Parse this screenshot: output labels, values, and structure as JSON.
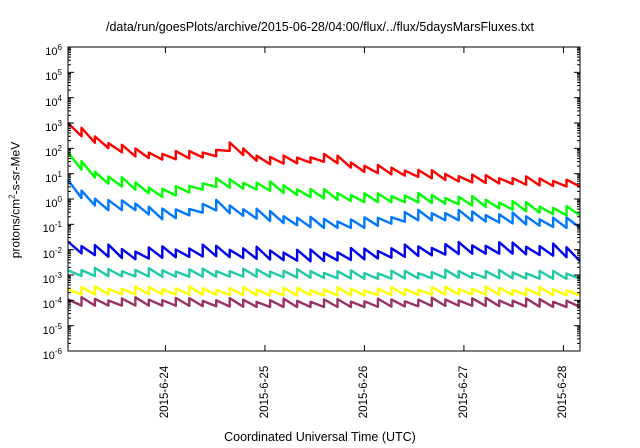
{
  "chart_data": {
    "type": "line",
    "title": "/data/run/goesPlots/archive/2015-06-28/04:00/flux/../flux/5daysMarsFluxes.txt",
    "xlabel": "Coordinated Universal Time (UTC)",
    "ylabel": "protons/cm2-s-sr-MeV",
    "ylabel_parts": {
      "pre": "protons/cm",
      "sup": "2",
      "post": "-s-sr-MeV"
    },
    "yscale": "log",
    "ylim": [
      1e-06,
      1000000.0
    ],
    "xlim": [
      "2015-06-23 00:30",
      "2015-06-28 04:00"
    ],
    "grid": false,
    "legend": "none",
    "y_ticks": [
      {
        "base": "10",
        "exp": "-6",
        "value": 1e-06
      },
      {
        "base": "10",
        "exp": "-5",
        "value": 1e-05
      },
      {
        "base": "10",
        "exp": "-4",
        "value": 0.0001
      },
      {
        "base": "10",
        "exp": "-3",
        "value": 0.001
      },
      {
        "base": "10",
        "exp": "-2",
        "value": 0.01
      },
      {
        "base": "10",
        "exp": "-1",
        "value": 0.1
      },
      {
        "base": "10",
        "exp": "0",
        "value": 1
      },
      {
        "base": "10",
        "exp": "1",
        "value": 10
      },
      {
        "base": "10",
        "exp": "2",
        "value": 100
      },
      {
        "base": "10",
        "exp": "3",
        "value": 1000
      },
      {
        "base": "10",
        "exp": "4",
        "value": 10000
      },
      {
        "base": "10",
        "exp": "5",
        "value": 100000
      },
      {
        "base": "10",
        "exp": "6",
        "value": 1000000
      }
    ],
    "x_ticks": [
      {
        "label": "2015-6-24",
        "date": "2015-06-24 00:00"
      },
      {
        "label": "2015-6-25",
        "date": "2015-06-25 00:00"
      },
      {
        "label": "2015-6-26",
        "date": "2015-06-26 00:00"
      },
      {
        "label": "2015-6-27",
        "date": "2015-06-27 00:00"
      },
      {
        "label": "2015-6-28",
        "date": "2015-06-28 00:00"
      }
    ],
    "series": [
      {
        "color": "#ff0000",
        "x": [
          "2015-06-23 00:30",
          "2015-06-23 09:00",
          "2015-06-23 17:00",
          "2015-06-24 00:00",
          "2015-06-24 12:00",
          "2015-06-24 16:00",
          "2015-06-25 00:00",
          "2015-06-25 12:00",
          "2015-06-25 16:00",
          "2015-06-26 00:00",
          "2015-06-26 12:00",
          "2015-06-27 00:00",
          "2015-06-27 12:00",
          "2015-06-28 00:00",
          "2015-06-28 04:00"
        ],
        "y": [
          700,
          150,
          60,
          45,
          60,
          110,
          30,
          35,
          40,
          15,
          10,
          6,
          5,
          4,
          4
        ]
      },
      {
        "color": "#00ff00",
        "x": [
          "2015-06-23 00:30",
          "2015-06-23 09:00",
          "2015-06-23 17:00",
          "2015-06-24 00:00",
          "2015-06-24 12:00",
          "2015-06-25 00:00",
          "2015-06-25 12:00",
          "2015-06-26 00:00",
          "2015-06-26 12:00",
          "2015-06-27 00:00",
          "2015-06-27 12:00",
          "2015-06-28 00:00",
          "2015-06-28 04:00"
        ],
        "y": [
          40,
          6,
          3,
          1.5,
          4,
          3,
          1.5,
          1,
          1,
          0.8,
          0.5,
          0.3,
          0.3
        ]
      },
      {
        "color": "#0077ff",
        "x": [
          "2015-06-23 00:30",
          "2015-06-23 09:00",
          "2015-06-23 17:00",
          "2015-06-24 00:00",
          "2015-06-24 12:00",
          "2015-06-25 00:00",
          "2015-06-25 12:00",
          "2015-06-26 00:00",
          "2015-06-26 12:00",
          "2015-06-27 00:00",
          "2015-06-27 12:00",
          "2015-06-28 00:00",
          "2015-06-28 04:00"
        ],
        "y": [
          3,
          0.5,
          0.5,
          0.2,
          0.5,
          0.2,
          0.1,
          0.1,
          0.2,
          0.2,
          0.15,
          0.1,
          0.1
        ]
      },
      {
        "color": "#0000ee",
        "x": [
          "2015-06-23 00:30",
          "2015-06-23 09:00",
          "2015-06-23 17:00",
          "2015-06-24 00:00",
          "2015-06-24 12:00",
          "2015-06-25 00:00",
          "2015-06-25 12:00",
          "2015-06-26 00:00",
          "2015-06-26 12:00",
          "2015-06-27 00:00",
          "2015-06-27 12:00",
          "2015-06-28 00:00",
          "2015-06-28 04:00"
        ],
        "y": [
          0.012,
          0.008,
          0.006,
          0.007,
          0.008,
          0.006,
          0.005,
          0.006,
          0.008,
          0.01,
          0.01,
          0.008,
          0.005
        ]
      },
      {
        "color": "#22c9a6",
        "x": [
          "2015-06-23 00:30",
          "2015-06-24 00:00",
          "2015-06-25 00:00",
          "2015-06-26 00:00",
          "2015-06-27 00:00",
          "2015-06-28 00:00",
          "2015-06-28 04:00"
        ],
        "y": [
          0.0012,
          0.0011,
          0.0011,
          0.0009,
          0.001,
          0.0009,
          0.0009
        ]
      },
      {
        "color": "#ffff00",
        "x": [
          "2015-06-23 00:30",
          "2015-06-24 00:00",
          "2015-06-25 00:00",
          "2015-06-26 00:00",
          "2015-06-27 00:00",
          "2015-06-28 00:00",
          "2015-06-28 04:00"
        ],
        "y": [
          0.00022,
          0.00022,
          0.0002,
          0.0002,
          0.00022,
          0.0002,
          0.0002
        ]
      },
      {
        "color": "#993366",
        "x": [
          "2015-06-23 00:30",
          "2015-06-24 00:00",
          "2015-06-25 00:00",
          "2015-06-26 00:00",
          "2015-06-27 00:00",
          "2015-06-28 00:00",
          "2015-06-28 04:00"
        ],
        "y": [
          8e-05,
          8e-05,
          7e-05,
          7e-05,
          8e-05,
          7e-05,
          7e-05
        ]
      }
    ]
  }
}
